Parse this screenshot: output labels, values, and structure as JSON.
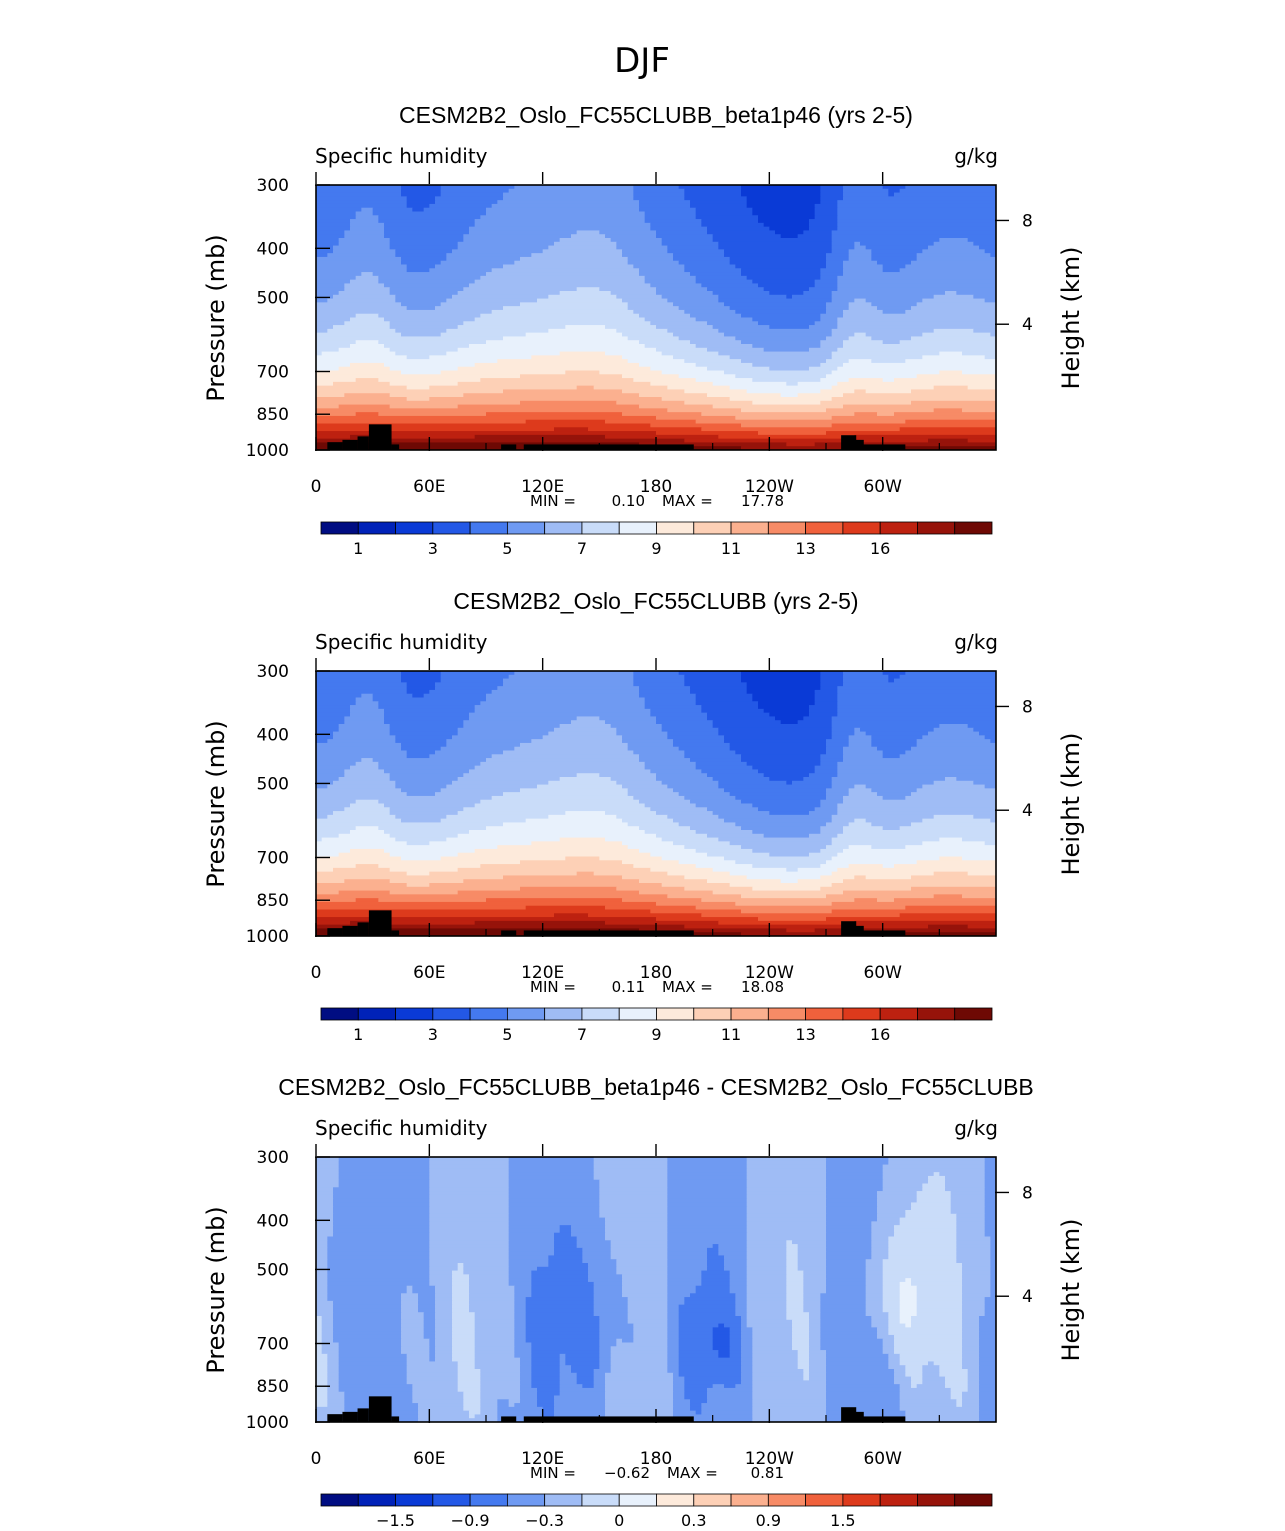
{
  "figure": {
    "suptitle": "DJF"
  },
  "chart_data": [
    {
      "type": "heatmap",
      "title": "CESM2B2_Oslo_FC55CLUBB_beta1p46 (yrs 2-5)",
      "field_label": "Specific humidity",
      "units": "g/kg",
      "ylabel": "Pressure (mb)",
      "ylabel_right": "Height (km)",
      "x_ticks": [
        "0",
        "60E",
        "120E",
        "180",
        "120W",
        "60W"
      ],
      "y_ticks": [
        "300",
        "400",
        "500",
        "700",
        "850",
        "1000"
      ],
      "y_ticks_right": [
        "8",
        "4"
      ],
      "ylim": [
        1000,
        300
      ],
      "min_label": "MIN =",
      "min_value": "0.10",
      "max_label": "MAX =",
      "max_value": "17.78",
      "colorbar_labels": [
        "1",
        "3",
        "5",
        "7",
        "9",
        "11",
        "13",
        "16"
      ],
      "palette": [
        "#000d82",
        "#0022b8",
        "#0a3ad6",
        "#2358e6",
        "#4479ef",
        "#6f9af2",
        "#9fbcf5",
        "#c9dcf9",
        "#e8f1fc",
        "#fdeadb",
        "#fdd0b6",
        "#fbb08f",
        "#f78b66",
        "#f0613c",
        "#dd3a1c",
        "#bd2110",
        "#96130a",
        "#6e0904"
      ],
      "palette_key": "seq"
    },
    {
      "type": "heatmap",
      "title": "CESM2B2_Oslo_FC55CLUBB (yrs 2-5)",
      "field_label": "Specific humidity",
      "units": "g/kg",
      "ylabel": "Pressure (mb)",
      "ylabel_right": "Height (km)",
      "x_ticks": [
        "0",
        "60E",
        "120E",
        "180",
        "120W",
        "60W"
      ],
      "y_ticks": [
        "300",
        "400",
        "500",
        "700",
        "850",
        "1000"
      ],
      "y_ticks_right": [
        "8",
        "4"
      ],
      "ylim": [
        1000,
        300
      ],
      "min_label": "MIN =",
      "min_value": "0.11",
      "max_label": "MAX =",
      "max_value": "18.08",
      "colorbar_labels": [
        "1",
        "3",
        "5",
        "7",
        "9",
        "11",
        "13",
        "16"
      ],
      "palette": [
        "#000d82",
        "#0022b8",
        "#0a3ad6",
        "#2358e6",
        "#4479ef",
        "#6f9af2",
        "#9fbcf5",
        "#c9dcf9",
        "#e8f1fc",
        "#fdeadb",
        "#fdd0b6",
        "#fbb08f",
        "#f78b66",
        "#f0613c",
        "#dd3a1c",
        "#bd2110",
        "#96130a",
        "#6e0904"
      ],
      "palette_key": "seq"
    },
    {
      "type": "heatmap",
      "title": "CESM2B2_Oslo_FC55CLUBB_beta1p46 - CESM2B2_Oslo_FC55CLUBB",
      "field_label": "Specific humidity",
      "units": "g/kg",
      "ylabel": "Pressure (mb)",
      "ylabel_right": "Height (km)",
      "x_ticks": [
        "0",
        "60E",
        "120E",
        "180",
        "120W",
        "60W"
      ],
      "y_ticks": [
        "300",
        "400",
        "500",
        "700",
        "850",
        "1000"
      ],
      "y_ticks_right": [
        "8",
        "4"
      ],
      "ylim": [
        1000,
        300
      ],
      "min_label": "MIN =",
      "min_value": "−0.62",
      "max_label": "MAX =",
      "max_value": "0.81",
      "colorbar_labels": [
        "−1.5",
        "−0.9",
        "−0.3",
        "0",
        "0.3",
        "0.9",
        "1.5"
      ],
      "palette": [
        "#000d82",
        "#0022b8",
        "#0a3ad6",
        "#2358e6",
        "#4479ef",
        "#6f9af2",
        "#9fbcf5",
        "#c9dcf9",
        "#e8f1fc",
        "#fdeadb",
        "#fdd0b6",
        "#fbb08f",
        "#f78b66",
        "#f0613c",
        "#dd3a1c",
        "#bd2110",
        "#96130a",
        "#6e0904"
      ],
      "palette_key": "diff"
    }
  ]
}
